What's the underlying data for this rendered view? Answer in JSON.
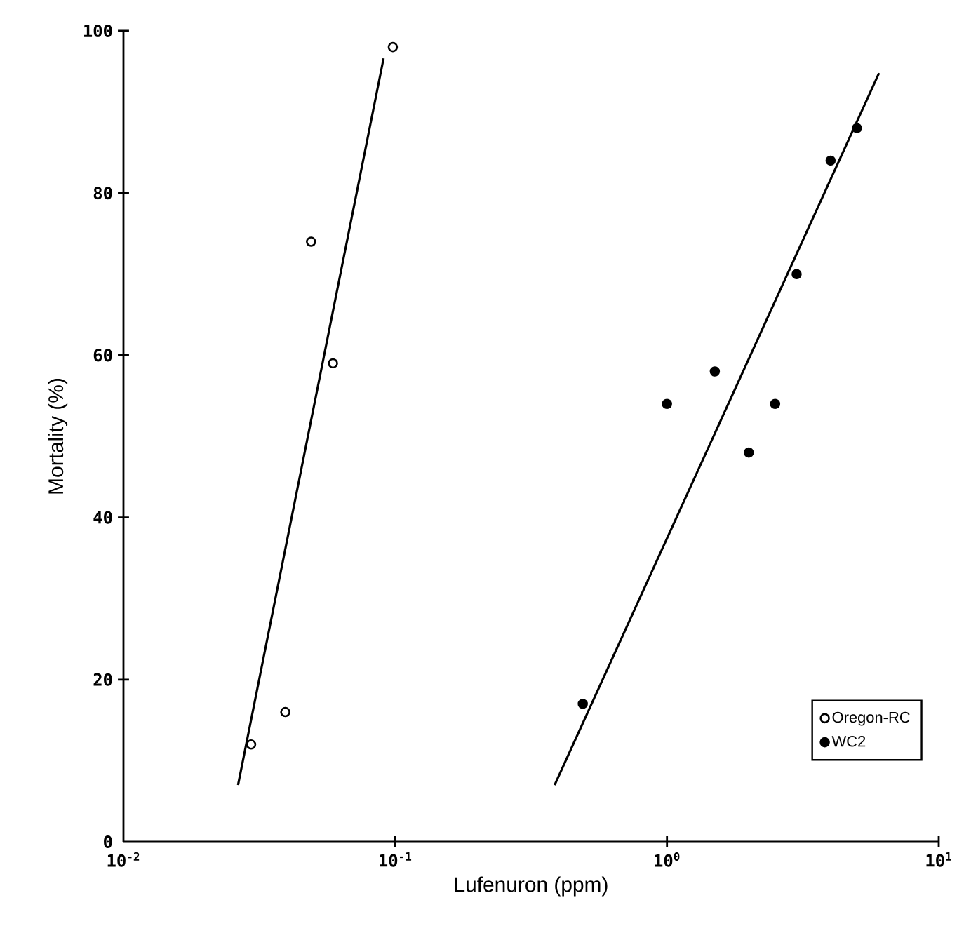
{
  "chart_data": {
    "type": "scatter",
    "xlabel": "Lufenuron (ppm)",
    "ylabel": "Mortality (%)",
    "log": "x",
    "xlim": [
      0.01,
      10
    ],
    "ylim": [
      0,
      100
    ],
    "xticks": [
      {
        "value": 0.01,
        "label": "10$^{-2}$"
      },
      {
        "value": 0.1,
        "label": "10$^{-1}$"
      },
      {
        "value": 1,
        "label": "10$^{0}$"
      },
      {
        "value": 10,
        "label": "10$^{1}$"
      }
    ],
    "yticks": [
      0,
      20,
      40,
      60,
      80,
      100
    ],
    "legend": "bottom right",
    "grid": false,
    "series": [
      {
        "name": "Oregon-RC",
        "color": "#ffffff",
        "marker": "circle",
        "x": [
          0.0295,
          0.0394,
          0.049,
          0.059,
          0.098
        ],
        "values": [
          12,
          16,
          74,
          59,
          98
        ]
      },
      {
        "name": "WC2",
        "color": "#000000",
        "marker": "circle",
        "x": [
          0.49,
          1.0,
          1.5,
          2.0,
          2.5,
          3.0,
          4.0,
          5.0
        ],
        "values": [
          17,
          54,
          58,
          48,
          54,
          70,
          84,
          88
        ]
      },
      {
        "type": "line",
        "color": "#000000",
        "marker": "none",
        "line_style": "solid",
        "x": [
          0.0264,
          0.0906
        ],
        "values": [
          7,
          96.6
        ]
      },
      {
        "type": "line",
        "color": "#000000",
        "marker": "none",
        "line_style": "solid",
        "x": [
          0.386,
          6.03
        ],
        "values": [
          7,
          94.8
        ]
      }
    ]
  }
}
